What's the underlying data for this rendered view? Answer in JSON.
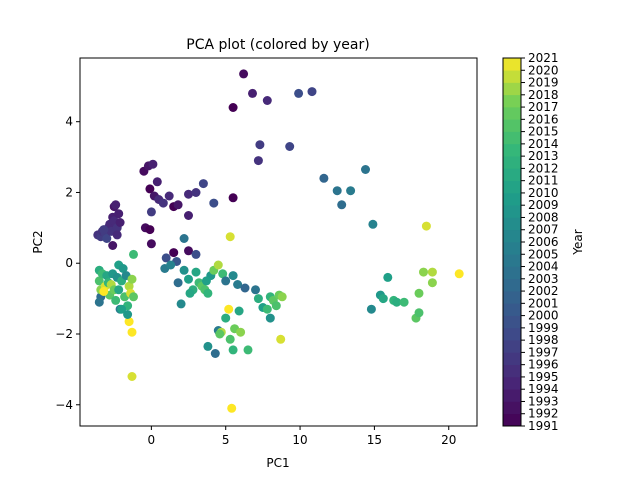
{
  "chart_data": {
    "type": "scatter",
    "title": "PCA plot (colored by year)",
    "xlabel": "PC1",
    "ylabel": "PC2",
    "xlim": [
      -4.8,
      21.9
    ],
    "ylim": [
      -4.6,
      5.8
    ],
    "x_ticks": [
      0,
      5,
      10,
      15,
      20
    ],
    "y_ticks": [
      -4,
      -2,
      0,
      2,
      4
    ],
    "grid": false,
    "colormap": "viridis",
    "colorbar": {
      "label": "Year",
      "min": 1991,
      "max": 2021,
      "ticks": [
        1991,
        1992,
        1993,
        1994,
        1995,
        1996,
        1997,
        1998,
        1999,
        2000,
        2001,
        2002,
        2003,
        2004,
        2005,
        2006,
        2007,
        2008,
        2009,
        2010,
        2011,
        2012,
        2013,
        2014,
        2015,
        2016,
        2017,
        2018,
        2019,
        2020,
        2021
      ]
    },
    "points": [
      {
        "x": -3.6,
        "y": 0.8,
        "year": 1996
      },
      {
        "x": -3.4,
        "y": 0.75,
        "year": 1997
      },
      {
        "x": -3.3,
        "y": 0.9,
        "year": 1996
      },
      {
        "x": -3.1,
        "y": 0.85,
        "year": 1997
      },
      {
        "x": -3.0,
        "y": 0.7,
        "year": 1998
      },
      {
        "x": -2.9,
        "y": 1.0,
        "year": 1996
      },
      {
        "x": -2.8,
        "y": 1.1,
        "year": 1995
      },
      {
        "x": -2.7,
        "y": 0.9,
        "year": 1996
      },
      {
        "x": -2.6,
        "y": 1.3,
        "year": 1994
      },
      {
        "x": -2.5,
        "y": 1.6,
        "year": 1993
      },
      {
        "x": -2.4,
        "y": 1.65,
        "year": 1994
      },
      {
        "x": -2.5,
        "y": 1.2,
        "year": 1995
      },
      {
        "x": -2.3,
        "y": 1.0,
        "year": 1996
      },
      {
        "x": -2.2,
        "y": 1.4,
        "year": 1994
      },
      {
        "x": -2.6,
        "y": 0.5,
        "year": 1993
      },
      {
        "x": -2.3,
        "y": 0.8,
        "year": 1995
      },
      {
        "x": -2.1,
        "y": 1.15,
        "year": 1994
      },
      {
        "x": -3.2,
        "y": 0.95,
        "year": 1997
      },
      {
        "x": -0.5,
        "y": 2.6,
        "year": 1992
      },
      {
        "x": -0.2,
        "y": 2.75,
        "year": 1993
      },
      {
        "x": 0.1,
        "y": 2.8,
        "year": 1994
      },
      {
        "x": -0.1,
        "y": 2.1,
        "year": 1991
      },
      {
        "x": 0.2,
        "y": 1.9,
        "year": 1993
      },
      {
        "x": 0.5,
        "y": 1.8,
        "year": 1995
      },
      {
        "x": 0.8,
        "y": 1.7,
        "year": 1996
      },
      {
        "x": 1.2,
        "y": 1.9,
        "year": 1995
      },
      {
        "x": 0.4,
        "y": 2.3,
        "year": 1994
      },
      {
        "x": 0.0,
        "y": 1.45,
        "year": 1997
      },
      {
        "x": -0.4,
        "y": 1.0,
        "year": 1992
      },
      {
        "x": -0.1,
        "y": 0.95,
        "year": 1991
      },
      {
        "x": 0.0,
        "y": 0.55,
        "year": 1992
      },
      {
        "x": 1.5,
        "y": 1.6,
        "year": 1991
      },
      {
        "x": 1.8,
        "y": 1.65,
        "year": 1993
      },
      {
        "x": 2.5,
        "y": 1.95,
        "year": 1995
      },
      {
        "x": 3.0,
        "y": 2.0,
        "year": 1996
      },
      {
        "x": 3.5,
        "y": 2.25,
        "year": 1998
      },
      {
        "x": 4.2,
        "y": 1.7,
        "year": 1999
      },
      {
        "x": 2.5,
        "y": 1.35,
        "year": 1994
      },
      {
        "x": 5.5,
        "y": 1.85,
        "year": 1991
      },
      {
        "x": 5.5,
        "y": 4.4,
        "year": 1991
      },
      {
        "x": 6.2,
        "y": 5.35,
        "year": 1992
      },
      {
        "x": 6.8,
        "y": 4.8,
        "year": 1994
      },
      {
        "x": 7.8,
        "y": 4.6,
        "year": 1995
      },
      {
        "x": 9.9,
        "y": 4.8,
        "year": 1999
      },
      {
        "x": 10.8,
        "y": 4.85,
        "year": 1998
      },
      {
        "x": 7.3,
        "y": 3.35,
        "year": 1997
      },
      {
        "x": 7.2,
        "y": 2.9,
        "year": 1996
      },
      {
        "x": 9.3,
        "y": 3.3,
        "year": 1998
      },
      {
        "x": 1.5,
        "y": 0.3,
        "year": 1991
      },
      {
        "x": 2.5,
        "y": 0.35,
        "year": 1992
      },
      {
        "x": 1.0,
        "y": 0.15,
        "year": 1999
      },
      {
        "x": 1.7,
        "y": 0.05,
        "year": 2000
      },
      {
        "x": 2.2,
        "y": 0.7,
        "year": 2004
      },
      {
        "x": 3.0,
        "y": 0.25,
        "year": 1999
      },
      {
        "x": 11.6,
        "y": 2.4,
        "year": 2002
      },
      {
        "x": 12.5,
        "y": 2.05,
        "year": 2004
      },
      {
        "x": 12.8,
        "y": 1.65,
        "year": 2003
      },
      {
        "x": 13.4,
        "y": 2.05,
        "year": 2005
      },
      {
        "x": 14.4,
        "y": 2.65,
        "year": 2004
      },
      {
        "x": 14.9,
        "y": 1.1,
        "year": 2006
      },
      {
        "x": -3.5,
        "y": -0.2,
        "year": 2012
      },
      {
        "x": -3.5,
        "y": -0.5,
        "year": 2015
      },
      {
        "x": -3.4,
        "y": -0.95,
        "year": 2003
      },
      {
        "x": -3.4,
        "y": -0.75,
        "year": 2018
      },
      {
        "x": -3.3,
        "y": -0.3,
        "year": 2014
      },
      {
        "x": -3.1,
        "y": -0.65,
        "year": 2020
      },
      {
        "x": -3.0,
        "y": -0.35,
        "year": 2011
      },
      {
        "x": -2.9,
        "y": -0.55,
        "year": 2013
      },
      {
        "x": -2.8,
        "y": -0.9,
        "year": 2016
      },
      {
        "x": -2.7,
        "y": -0.6,
        "year": 2019
      },
      {
        "x": -2.6,
        "y": -0.3,
        "year": 2009
      },
      {
        "x": -2.5,
        "y": -0.75,
        "year": 2017
      },
      {
        "x": -2.4,
        "y": -1.05,
        "year": 2014
      },
      {
        "x": -2.3,
        "y": -0.4,
        "year": 2008
      },
      {
        "x": -2.2,
        "y": -0.05,
        "year": 2010
      },
      {
        "x": -2.1,
        "y": -1.3,
        "year": 2005
      },
      {
        "x": -2.0,
        "y": -0.5,
        "year": 2012
      },
      {
        "x": -1.9,
        "y": -0.15,
        "year": 2009
      },
      {
        "x": -1.8,
        "y": -0.95,
        "year": 2015
      },
      {
        "x": -1.7,
        "y": -0.35,
        "year": 2007
      },
      {
        "x": -1.6,
        "y": -1.2,
        "year": 2013
      },
      {
        "x": -1.5,
        "y": -0.65,
        "year": 2019
      },
      {
        "x": -1.4,
        "y": -0.85,
        "year": 2020
      },
      {
        "x": -1.3,
        "y": -0.45,
        "year": 2018
      },
      {
        "x": -1.2,
        "y": -0.95,
        "year": 2016
      },
      {
        "x": -1.2,
        "y": 0.25,
        "year": 2014
      },
      {
        "x": -1.5,
        "y": -1.65,
        "year": 2021
      },
      {
        "x": -1.3,
        "y": -1.95,
        "year": 2021
      },
      {
        "x": -1.3,
        "y": -3.2,
        "year": 2020
      },
      {
        "x": -2.2,
        "y": -0.75,
        "year": 2011
      },
      {
        "x": -3.5,
        "y": -1.1,
        "year": 2004
      },
      {
        "x": -3.2,
        "y": -0.8,
        "year": 2021
      },
      {
        "x": -2.0,
        "y": -1.3,
        "year": 2010
      },
      {
        "x": -1.6,
        "y": -1.45,
        "year": 2009
      },
      {
        "x": 0.9,
        "y": -0.15,
        "year": 2005
      },
      {
        "x": 1.3,
        "y": -0.05,
        "year": 2006
      },
      {
        "x": 1.8,
        "y": -0.55,
        "year": 2003
      },
      {
        "x": 2.0,
        "y": -1.15,
        "year": 2007
      },
      {
        "x": 2.2,
        "y": -0.2,
        "year": 2008
      },
      {
        "x": 2.5,
        "y": -0.45,
        "year": 2010
      },
      {
        "x": 2.8,
        "y": -0.75,
        "year": 2012
      },
      {
        "x": 3.0,
        "y": -0.25,
        "year": 2011
      },
      {
        "x": 3.2,
        "y": -0.55,
        "year": 2014
      },
      {
        "x": 3.4,
        "y": -0.65,
        "year": 2016
      },
      {
        "x": 3.6,
        "y": -0.75,
        "year": 2015
      },
      {
        "x": 3.8,
        "y": -0.85,
        "year": 2013
      },
      {
        "x": 4.0,
        "y": -0.35,
        "year": 2009
      },
      {
        "x": 4.2,
        "y": -0.2,
        "year": 2017
      },
      {
        "x": 4.5,
        "y": -0.05,
        "year": 2019
      },
      {
        "x": 4.8,
        "y": -0.3,
        "year": 2014
      },
      {
        "x": 5.0,
        "y": -0.5,
        "year": 2004
      },
      {
        "x": 5.3,
        "y": 0.75,
        "year": 2020
      },
      {
        "x": 5.5,
        "y": -0.35,
        "year": 2007
      },
      {
        "x": 5.8,
        "y": -0.6,
        "year": 2005
      },
      {
        "x": 3.7,
        "y": -0.5,
        "year": 2010
      },
      {
        "x": 2.6,
        "y": -0.85,
        "year": 2011
      },
      {
        "x": 3.8,
        "y": -2.35,
        "year": 2008
      },
      {
        "x": 4.3,
        "y": -2.55,
        "year": 2003
      },
      {
        "x": 4.5,
        "y": -1.9,
        "year": 2005
      },
      {
        "x": 4.7,
        "y": -1.95,
        "year": 2019
      },
      {
        "x": 5.0,
        "y": -1.55,
        "year": 2012
      },
      {
        "x": 5.2,
        "y": -1.3,
        "year": 2021
      },
      {
        "x": 5.3,
        "y": -2.15,
        "year": 2015
      },
      {
        "x": 5.5,
        "y": -2.45,
        "year": 2013
      },
      {
        "x": 5.6,
        "y": -1.85,
        "year": 2017
      },
      {
        "x": 6.0,
        "y": -1.95,
        "year": 2018
      },
      {
        "x": 6.5,
        "y": -2.45,
        "year": 2014
      },
      {
        "x": 5.4,
        "y": -4.1,
        "year": 2021
      },
      {
        "x": 4.6,
        "y": -2.0,
        "year": 2016
      },
      {
        "x": 5.9,
        "y": -1.35,
        "year": 2011
      },
      {
        "x": 7.2,
        "y": -1.0,
        "year": 2012
      },
      {
        "x": 7.5,
        "y": -1.25,
        "year": 2010
      },
      {
        "x": 7.8,
        "y": -1.3,
        "year": 2014
      },
      {
        "x": 8.0,
        "y": -0.95,
        "year": 2013
      },
      {
        "x": 8.2,
        "y": -1.05,
        "year": 2016
      },
      {
        "x": 8.4,
        "y": -1.2,
        "year": 2015
      },
      {
        "x": 8.6,
        "y": -0.9,
        "year": 2017
      },
      {
        "x": 8.8,
        "y": -0.95,
        "year": 2018
      },
      {
        "x": 8.0,
        "y": -1.55,
        "year": 2008
      },
      {
        "x": 8.7,
        "y": -2.15,
        "year": 2020
      },
      {
        "x": 7.0,
        "y": -0.75,
        "year": 2004
      },
      {
        "x": 6.3,
        "y": -0.7,
        "year": 2002
      },
      {
        "x": 14.8,
        "y": -1.3,
        "year": 2007
      },
      {
        "x": 15.4,
        "y": -0.9,
        "year": 2009
      },
      {
        "x": 15.6,
        "y": -1.0,
        "year": 2011
      },
      {
        "x": 15.9,
        "y": -0.4,
        "year": 2010
      },
      {
        "x": 16.3,
        "y": -1.05,
        "year": 2013
      },
      {
        "x": 16.5,
        "y": -1.1,
        "year": 2012
      },
      {
        "x": 17.0,
        "y": -1.1,
        "year": 2014
      },
      {
        "x": 17.8,
        "y": -1.55,
        "year": 2016
      },
      {
        "x": 18.0,
        "y": -1.4,
        "year": 2015
      },
      {
        "x": 18.0,
        "y": -0.85,
        "year": 2017
      },
      {
        "x": 18.3,
        "y": -0.25,
        "year": 2018
      },
      {
        "x": 18.5,
        "y": 1.05,
        "year": 2020
      },
      {
        "x": 18.9,
        "y": -0.55,
        "year": 2018
      },
      {
        "x": 18.9,
        "y": -0.25,
        "year": 2019
      },
      {
        "x": 20.7,
        "y": -0.3,
        "year": 2021
      }
    ]
  }
}
